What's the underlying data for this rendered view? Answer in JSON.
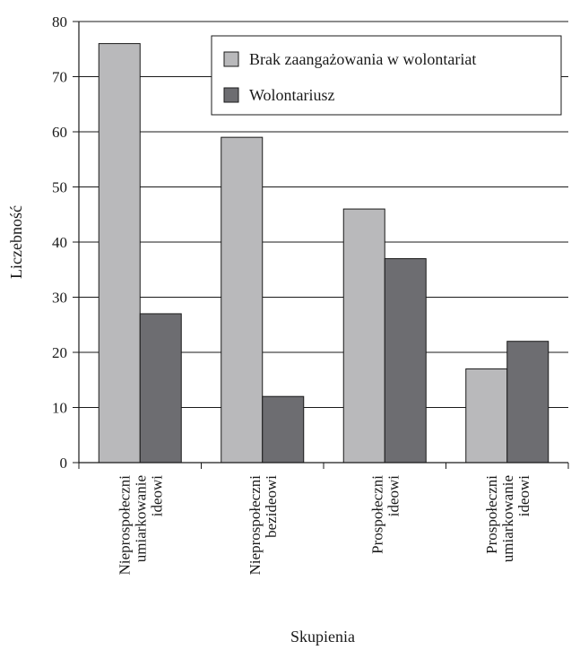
{
  "chart_data": {
    "type": "bar",
    "categories": [
      [
        "Nieprospołeczni",
        "umiarkowanie",
        "ideowi"
      ],
      [
        "Nieprospołeczni",
        "bezideowi"
      ],
      [
        "Prospołeczni",
        "ideowi"
      ],
      [
        "Prospołeczni",
        "umiarkowanie",
        "ideowi"
      ]
    ],
    "series": [
      {
        "name": "Brak zaangażowania w wolontariat",
        "values": [
          76,
          59,
          46,
          17
        ],
        "color": "#b9b9bb"
      },
      {
        "name": "Wolontariusz",
        "values": [
          27,
          12,
          37,
          22
        ],
        "color": "#6d6d71"
      }
    ],
    "xlabel": "Skupienia",
    "ylabel": "Liczebność",
    "ylim": [
      0,
      80
    ],
    "yticks": [
      0,
      10,
      20,
      30,
      40,
      50,
      60,
      70,
      80
    ],
    "grid": true,
    "legend_position": "top-right"
  }
}
